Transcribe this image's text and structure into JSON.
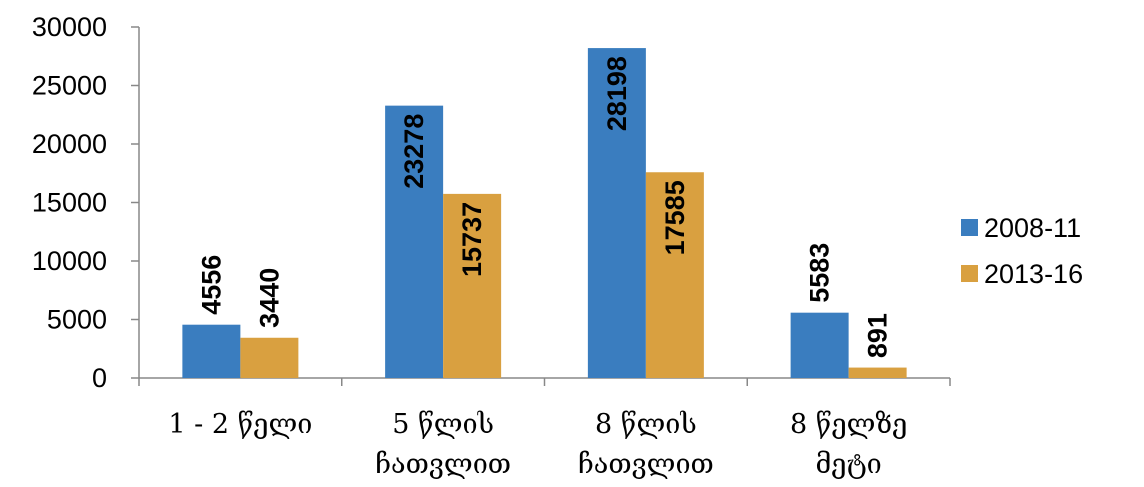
{
  "chart_data": {
    "type": "bar",
    "categories": [
      [
        "1 - 2 წელი"
      ],
      [
        "5 წლის",
        "ჩათვლით"
      ],
      [
        "8 წლის",
        "ჩათვლით"
      ],
      [
        "8 წელზე",
        "მეტი"
      ]
    ],
    "series": [
      {
        "name": "2008-11",
        "values": [
          4556,
          23278,
          28198,
          5583
        ],
        "color": "#3a7dbf"
      },
      {
        "name": "2013-16",
        "values": [
          3440,
          15737,
          17585,
          891
        ],
        "color": "#d9a040"
      }
    ],
    "ylim": [
      0,
      30000
    ],
    "yticks": [
      0,
      5000,
      10000,
      15000,
      20000,
      25000,
      30000
    ],
    "data_labels": "rotated-bold",
    "legend_position": "right",
    "grid": false
  }
}
